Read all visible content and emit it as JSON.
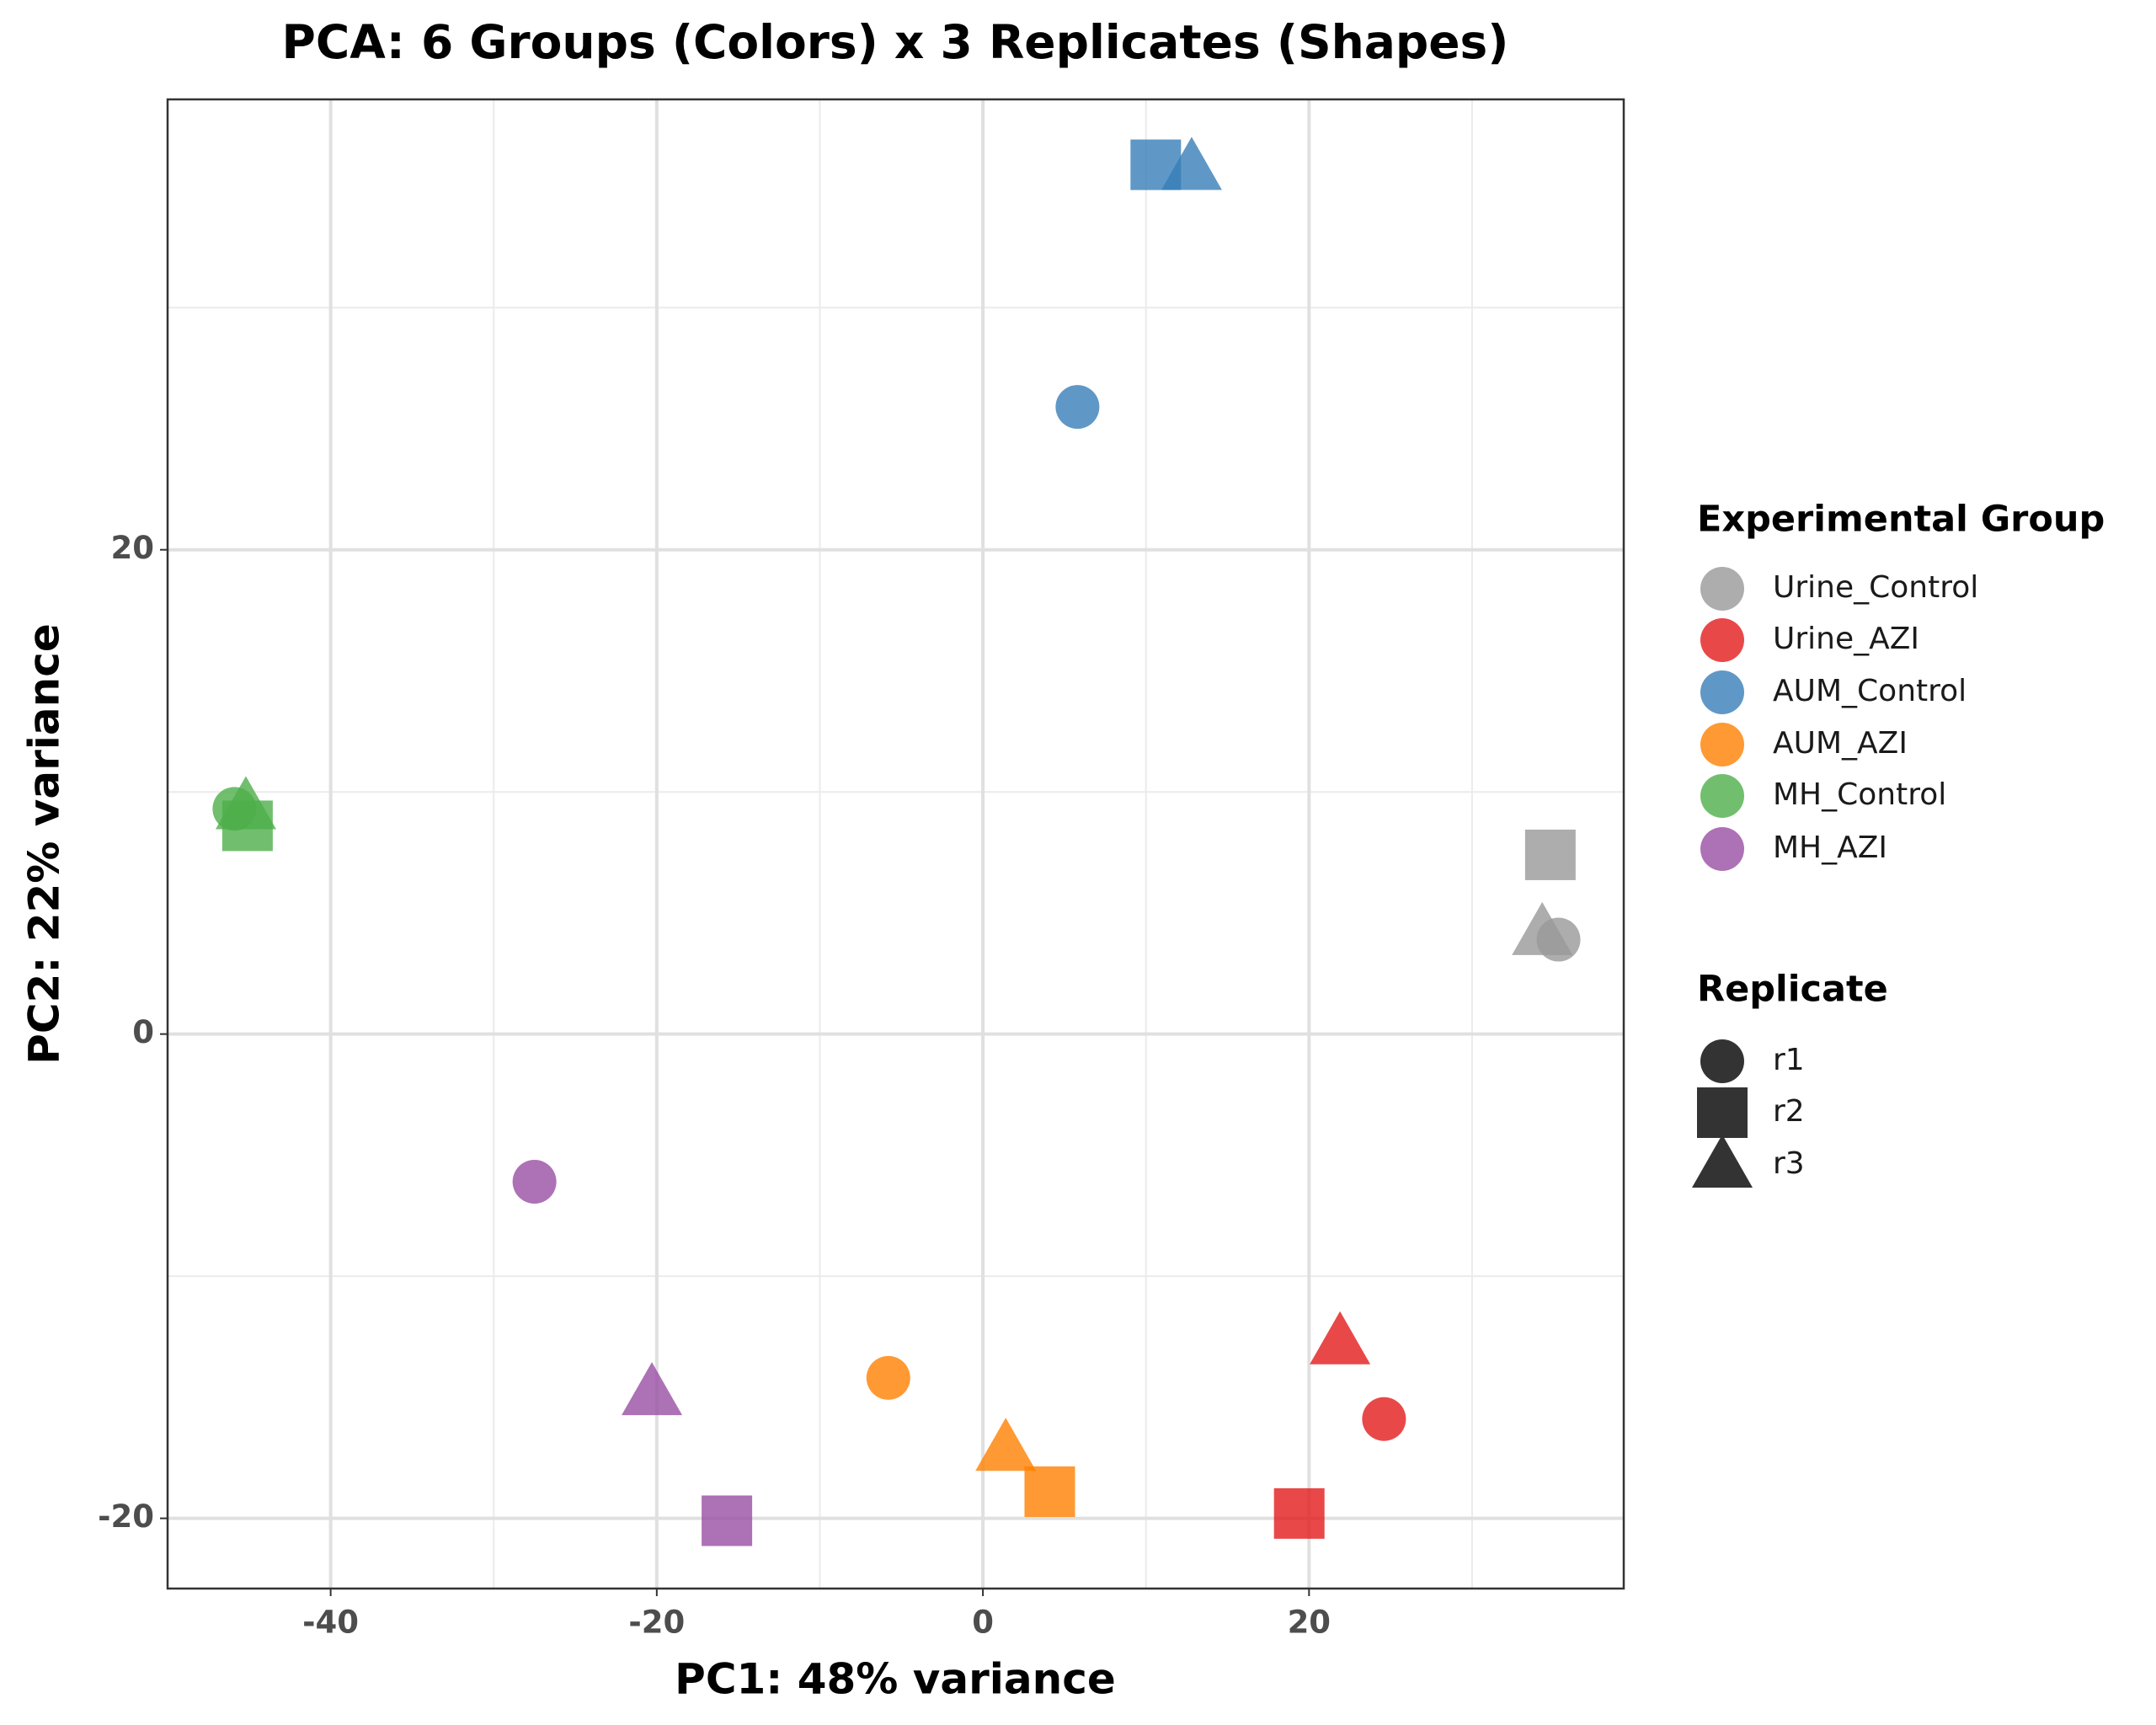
{
  "chart_data": {
    "type": "scatter",
    "title": "PCA: 6 Groups (Colors) x 3 Replicates (Shapes)",
    "x_label": "PC1: 48% variance",
    "y_label": "PC2: 22% variance",
    "xlim": [
      -50,
      39.3
    ],
    "ylim": [
      -22.9,
      38.6
    ],
    "xticks": [
      -40,
      -20,
      0,
      20
    ],
    "yticks": [
      -20,
      0,
      20
    ],
    "x_minor_grid": [
      -30,
      -10,
      10,
      30
    ],
    "y_minor_grid": [
      -10,
      10,
      30
    ],
    "grid": true,
    "legend_position": "right",
    "legend_title": "Experimental Group",
    "shape_legend_title": "Replicate",
    "replicates": [
      "r1",
      "r2",
      "r3"
    ],
    "shapes": [
      "circle",
      "square",
      "triangle"
    ],
    "series": [
      {
        "name": "Urine_Control",
        "color": "#999999",
        "x": [
          35.3,
          34.8,
          34.3
        ],
        "values": [
          3.9,
          7.4,
          4.2
        ]
      },
      {
        "name": "Urine_AZI",
        "color": "#e41a1c",
        "x": [
          24.6,
          19.4,
          21.9
        ],
        "values": [
          -15.9,
          -19.8,
          -12.7
        ]
      },
      {
        "name": "AUM_Control",
        "color": "#377eb8",
        "x": [
          5.8,
          10.6,
          12.8
        ],
        "values": [
          25.9,
          35.9,
          35.8
        ]
      },
      {
        "name": "AUM_AZI",
        "color": "#ff7f00",
        "x": [
          -5.8,
          4.1,
          1.4
        ],
        "values": [
          -14.2,
          -18.9,
          -17.1
        ]
      },
      {
        "name": "MH_Control",
        "color": "#4daf4a",
        "x": [
          -45.9,
          -45.1,
          -45.2
        ],
        "values": [
          9.3,
          8.6,
          9.4
        ]
      },
      {
        "name": "MH_AZI",
        "color": "#984ea3",
        "x": [
          -27.5,
          -15.7,
          -20.3
        ],
        "values": [
          -6.1,
          -20.1,
          -14.8
        ]
      }
    ]
  }
}
